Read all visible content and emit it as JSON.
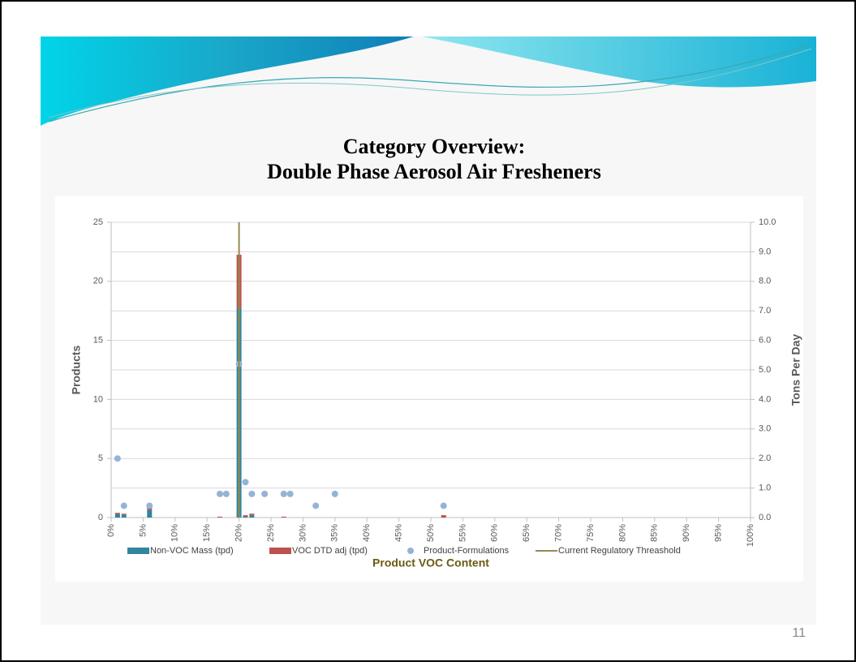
{
  "slide": {
    "title": [
      "Category Overview:",
      "Double Phase Aerosol Air Fresheners"
    ],
    "page_number": "11"
  },
  "chart_data": {
    "type": "combo",
    "x_label": "Product VOC Content",
    "y_label": "Products",
    "y2_label": "Tons Per Day",
    "xlim": [
      0,
      100
    ],
    "xticks": [
      {
        "value": 0,
        "label": "0%"
      },
      {
        "value": 5,
        "label": "5%"
      },
      {
        "value": 10,
        "label": "10%"
      },
      {
        "value": 15,
        "label": "15%"
      },
      {
        "value": 20,
        "label": "20%"
      },
      {
        "value": 25,
        "label": "25%"
      },
      {
        "value": 30,
        "label": "30%"
      },
      {
        "value": 35,
        "label": "35%"
      },
      {
        "value": 40,
        "label": "40%"
      },
      {
        "value": 45,
        "label": "45%"
      },
      {
        "value": 50,
        "label": "50%"
      },
      {
        "value": 55,
        "label": "55%"
      },
      {
        "value": 60,
        "label": "60%"
      },
      {
        "value": 65,
        "label": "65%"
      },
      {
        "value": 70,
        "label": "70%"
      },
      {
        "value": 75,
        "label": "75%"
      },
      {
        "value": 80,
        "label": "80%"
      },
      {
        "value": 85,
        "label": "85%"
      },
      {
        "value": 90,
        "label": "90%"
      },
      {
        "value": 95,
        "label": "95%"
      },
      {
        "value": 100,
        "label": "100%"
      }
    ],
    "ylim": [
      0,
      25
    ],
    "yticks": [
      0,
      5,
      10,
      15,
      20,
      25
    ],
    "y2lim": [
      0,
      10
    ],
    "y2ticks": [
      {
        "value": 0,
        "label": "0.0"
      },
      {
        "value": 1,
        "label": "1.0"
      },
      {
        "value": 2,
        "label": "2.0"
      },
      {
        "value": 3,
        "label": "3.0"
      },
      {
        "value": 4,
        "label": "4.0"
      },
      {
        "value": 5,
        "label": "5.0"
      },
      {
        "value": 6,
        "label": "6.0"
      },
      {
        "value": 7,
        "label": "7.0"
      },
      {
        "value": 8,
        "label": "8.0"
      },
      {
        "value": 9,
        "label": "9.0"
      },
      {
        "value": 10,
        "label": "10.0"
      }
    ],
    "grid": "y2",
    "series": [
      {
        "name": "Non-VOC Mass (tpd)",
        "type": "bar",
        "axis": "y2",
        "color": "#31859c",
        "x": [
          1,
          2,
          6,
          17,
          20,
          21,
          22,
          27,
          52
        ],
        "values": [
          0.12,
          0.1,
          0.25,
          0,
          7.1,
          0.03,
          0.08,
          0,
          0
        ]
      },
      {
        "name": "VOC DTD adj (tpd)",
        "type": "bar",
        "axis": "y2",
        "color": "#c0504d",
        "x": [
          1,
          2,
          6,
          17,
          20,
          21,
          22,
          27,
          52
        ],
        "values": [
          0.04,
          0.03,
          0.08,
          0.03,
          1.8,
          0.05,
          0.05,
          0.03,
          0.08
        ]
      },
      {
        "name": "Product-Formulations",
        "type": "scatter",
        "color": "#95b3d7",
        "x": [
          1,
          2,
          6,
          17,
          18,
          20,
          21,
          22,
          24,
          27,
          28,
          32,
          35,
          52
        ],
        "values": [
          5,
          1,
          1,
          2,
          2,
          13,
          3,
          2,
          2,
          2,
          2,
          1,
          2,
          1
        ]
      },
      {
        "name": "Current Regulatory Threashold",
        "type": "line",
        "color": "#948a54",
        "x": [
          20,
          20
        ],
        "values": [
          0,
          25
        ]
      }
    ]
  }
}
